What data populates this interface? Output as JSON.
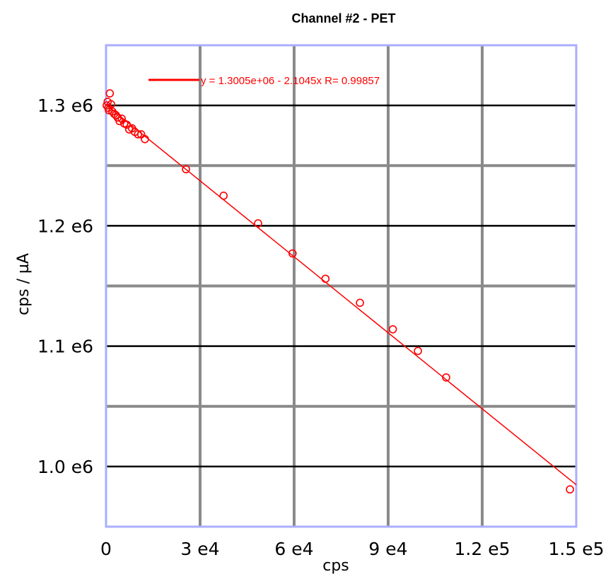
{
  "chart_data": {
    "type": "scatter",
    "title": "Channel #2 - PET",
    "xlabel": "cps",
    "ylabel": "cps / µA",
    "xlim": [
      0,
      150000
    ],
    "ylim": [
      950000,
      1350000
    ],
    "x_ticks": [
      {
        "value": 0,
        "label": "0"
      },
      {
        "value": 30000,
        "label": "3 e4"
      },
      {
        "value": 60000,
        "label": "6 e4"
      },
      {
        "value": 90000,
        "label": "9 e4"
      },
      {
        "value": 120000,
        "label": "1.2 e5"
      },
      {
        "value": 150000,
        "label": "1.5 e5"
      }
    ],
    "y_ticks": [
      {
        "value": 1000000,
        "label": "1.0 e6"
      },
      {
        "value": 1100000,
        "label": "1.1 e6"
      },
      {
        "value": 1200000,
        "label": "1.2 e6"
      },
      {
        "value": 1300000,
        "label": "1.3 e6"
      }
    ],
    "grid": true,
    "legend_position": "top",
    "fit": {
      "label": "y = 1.3005e+06 - 2.1045x   R= 0.99857",
      "intercept": 1300500,
      "slope": -2.1045,
      "color": "#ff0000"
    },
    "series": [
      {
        "color": "#ff0000",
        "x": [
          200,
          500,
          700,
          900,
          1200,
          1600,
          2000,
          2600,
          3100,
          3700,
          4300,
          5000,
          5800,
          6600,
          7400,
          8300,
          9200,
          10200,
          11200,
          12400,
          25500,
          37500,
          48500,
          59500,
          70000,
          81000,
          91500,
          99500,
          108500,
          148000
        ],
        "y": [
          1300000,
          1303000,
          1298000,
          1296000,
          1310000,
          1301000,
          1295000,
          1293000,
          1292000,
          1290000,
          1287000,
          1289000,
          1285000,
          1284000,
          1280000,
          1281000,
          1278000,
          1276000,
          1276000,
          1272000,
          1247000,
          1225000,
          1202000,
          1177000,
          1156000,
          1136000,
          1114000,
          1096000,
          1074000,
          981000
        ]
      }
    ]
  },
  "colors": {
    "frame": "#a9aeff",
    "grid_major": "#000000",
    "grid_minor": "#8a8a8a",
    "data": "#ff0000"
  }
}
